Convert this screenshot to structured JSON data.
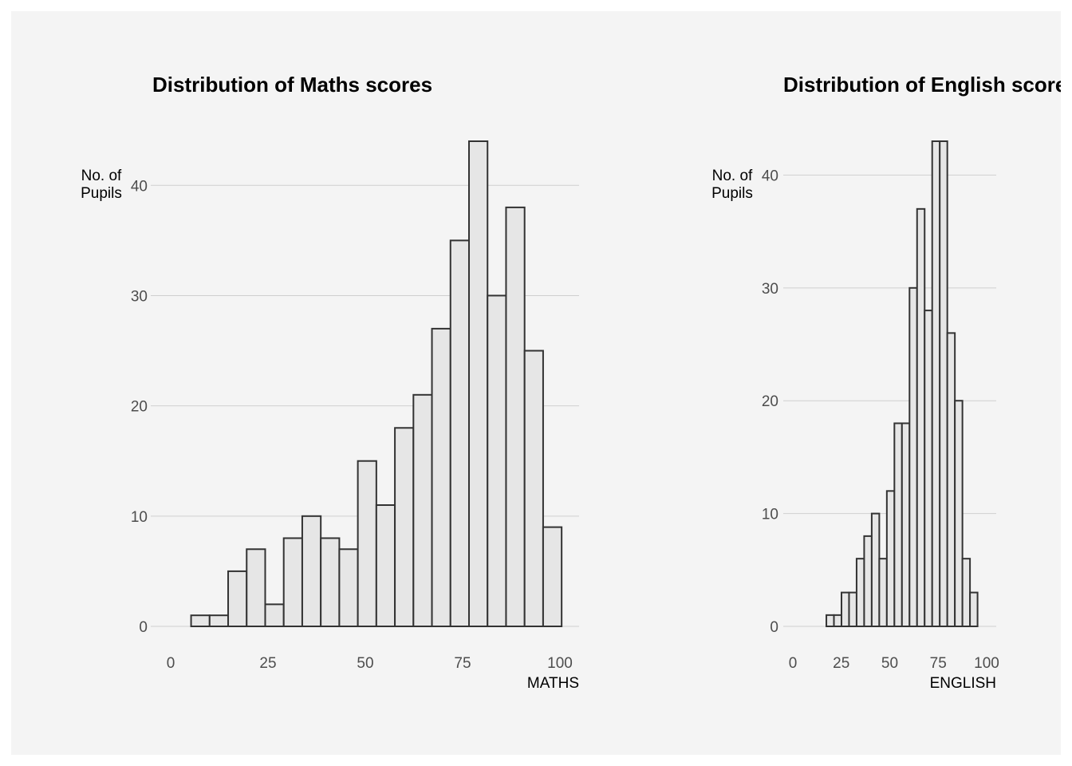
{
  "chart_data": [
    {
      "type": "bar",
      "title": "Distribution of Maths scores",
      "ylabel_lines": [
        "No. of",
        "Pupils"
      ],
      "xlabel": "MATHS",
      "xlim": [
        0,
        100
      ],
      "ylim": [
        0,
        44
      ],
      "x_ticks": [
        0,
        25,
        50,
        75,
        100
      ],
      "y_ticks": [
        0,
        10,
        20,
        30,
        40
      ],
      "bin_width": 4.76,
      "bin_start": 5.24,
      "values": [
        1,
        1,
        5,
        7,
        2,
        8,
        10,
        8,
        7,
        15,
        11,
        18,
        21,
        27,
        35,
        44,
        30,
        38,
        25,
        9
      ],
      "grid": "horizontal"
    },
    {
      "type": "bar",
      "title": "Distribution of English scores",
      "ylabel_lines": [
        "No. of",
        "Pupils"
      ],
      "xlabel": "ENGLISH",
      "xlim": [
        0,
        100
      ],
      "ylim": [
        0,
        43
      ],
      "x_ticks": [
        0,
        25,
        50,
        75,
        100
      ],
      "y_ticks": [
        0,
        10,
        20,
        30,
        40
      ],
      "bin_width": 3.9,
      "bin_start": 17.3,
      "values": [
        1,
        1,
        3,
        3,
        6,
        8,
        10,
        6,
        12,
        18,
        18,
        30,
        37,
        28,
        43,
        43,
        26,
        20,
        6,
        3
      ],
      "grid": "horizontal"
    }
  ]
}
